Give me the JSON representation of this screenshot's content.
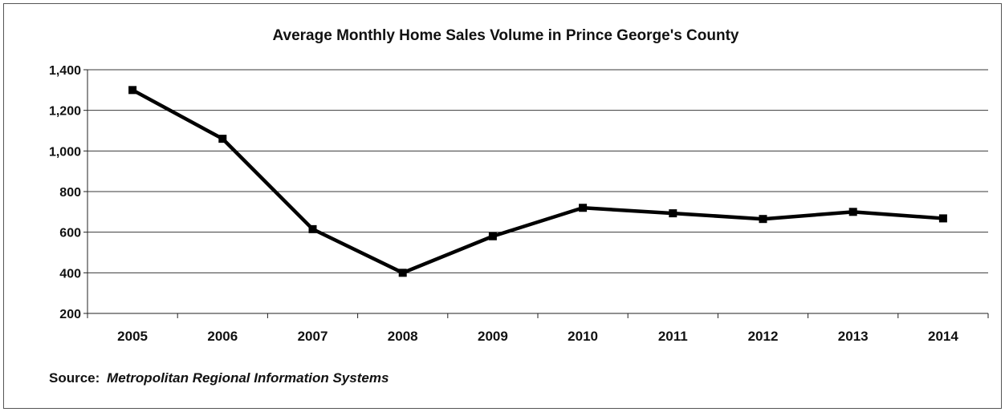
{
  "chart_data": {
    "type": "line",
    "title": "Average Monthly Home Sales Volume in Prince George's County",
    "categories": [
      "2005",
      "2006",
      "2007",
      "2008",
      "2009",
      "2010",
      "2011",
      "2012",
      "2013",
      "2014"
    ],
    "series": [
      {
        "values": [
          1300,
          1060,
          615,
          400,
          580,
          720,
          693,
          665,
          700,
          668
        ]
      }
    ],
    "ylim": [
      200,
      1400
    ],
    "yticks": [
      200,
      400,
      600,
      800,
      1000,
      1200,
      1400
    ],
    "ytick_labels": [
      "200",
      "400",
      "600",
      "800",
      "1,000",
      "1,200",
      "1,400"
    ],
    "grid": true,
    "legend": "none",
    "line_color": "#000000",
    "marker": "square"
  },
  "source": {
    "label": "Source:",
    "text": "Metropolitan Regional Information Systems"
  }
}
